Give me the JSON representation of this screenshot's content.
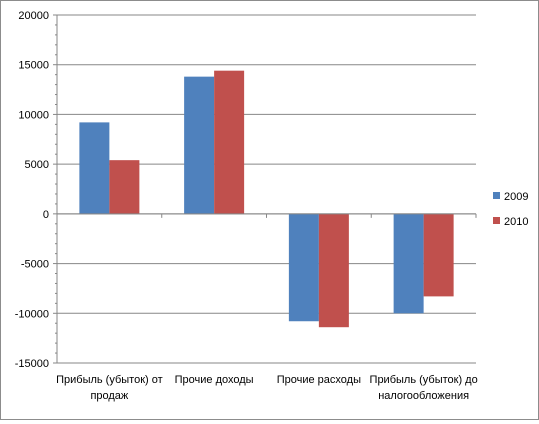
{
  "chart_data": {
    "type": "bar",
    "categories": [
      [
        "Прибыль (убыток) от",
        "продаж"
      ],
      [
        "Прочие доходы"
      ],
      [
        "Прочие расходы"
      ],
      [
        "Прибыль (убыток) до",
        "налогообложения"
      ]
    ],
    "series": [
      {
        "name": "2009",
        "color": "#4f81bd",
        "values": [
          9200,
          13800,
          -10800,
          -10000
        ]
      },
      {
        "name": "2010",
        "color": "#c0504d",
        "values": [
          5400,
          14400,
          -11400,
          -8300
        ]
      }
    ],
    "yticks": [
      "20000",
      "15000",
      "10000",
      "5000",
      "0",
      "-5000",
      "-10000",
      "-15000"
    ],
    "ylim": [
      -15000,
      20000
    ],
    "grid": true,
    "legend_position": "right",
    "title": "",
    "xlabel": "",
    "ylabel": ""
  }
}
